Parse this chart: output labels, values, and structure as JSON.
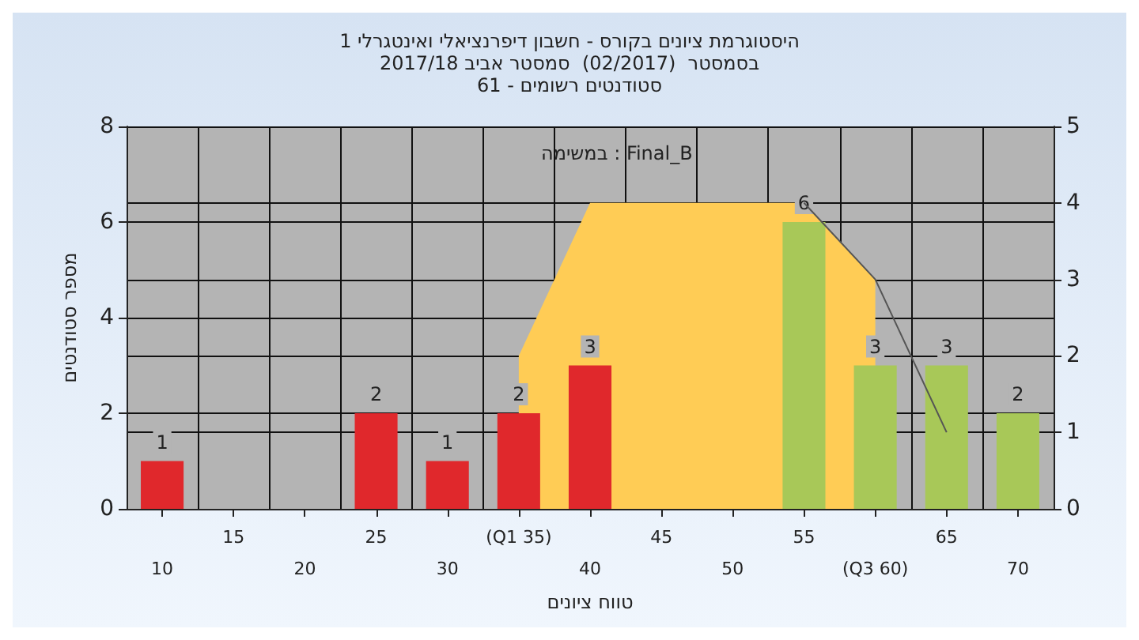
{
  "chart_data": {
    "type": "bar",
    "title": "היסטוגרמת ציונים בקורס - חשבון דיפרנציאלי ואינטגרלי 1",
    "subtitle": "בסמסטר  (02/2017)  סמסטר אביב 2017/18\nסטודנטים רשומים - 61",
    "xlabel": "טווח ציונים",
    "ylabel": "מספר סטודנטים",
    "annotations": [
      "במשימה : Final_B"
    ],
    "categories": [
      "10",
      "15",
      "20",
      "25",
      "30",
      "(Q1 35)",
      "40",
      "45",
      "50",
      "55",
      "(Q3 60)",
      "65",
      "70"
    ],
    "series": [
      {
        "colors": [
          "#e0282c",
          "#e0282c",
          "#e0282c",
          "#e0282c",
          "#e0282c",
          "#e0282c",
          "#e0282c",
          "#a8c858",
          "#a8c858",
          "#a8c858",
          "#a8c858",
          "#a8c858",
          "#a8c858"
        ],
        "values": [
          1,
          0,
          0,
          2,
          1,
          2,
          3,
          0,
          0,
          6,
          3,
          3,
          2
        ],
        "value_labels": [
          "1",
          null,
          null,
          "2",
          "1",
          "2",
          "3",
          null,
          null,
          "6",
          "3",
          "3",
          "2"
        ]
      },
      {
        "type": "area",
        "axis": "y2",
        "color": "#ffcc55",
        "values": [
          null,
          null,
          null,
          null,
          null,
          2,
          4,
          4,
          4,
          4,
          3,
          null,
          null
        ]
      },
      {
        "type": "line",
        "axis": "y2",
        "color": "#555555",
        "values": [
          null,
          null,
          null,
          null,
          null,
          null,
          null,
          null,
          null,
          4,
          3,
          1,
          null
        ]
      }
    ],
    "ylim": [
      0,
      8
    ],
    "yticks": [
      0,
      2,
      4,
      6,
      8
    ],
    "y2lim": [
      0,
      5
    ],
    "y2ticks": [
      0,
      1,
      2,
      3,
      4,
      5
    ],
    "grid": true
  }
}
